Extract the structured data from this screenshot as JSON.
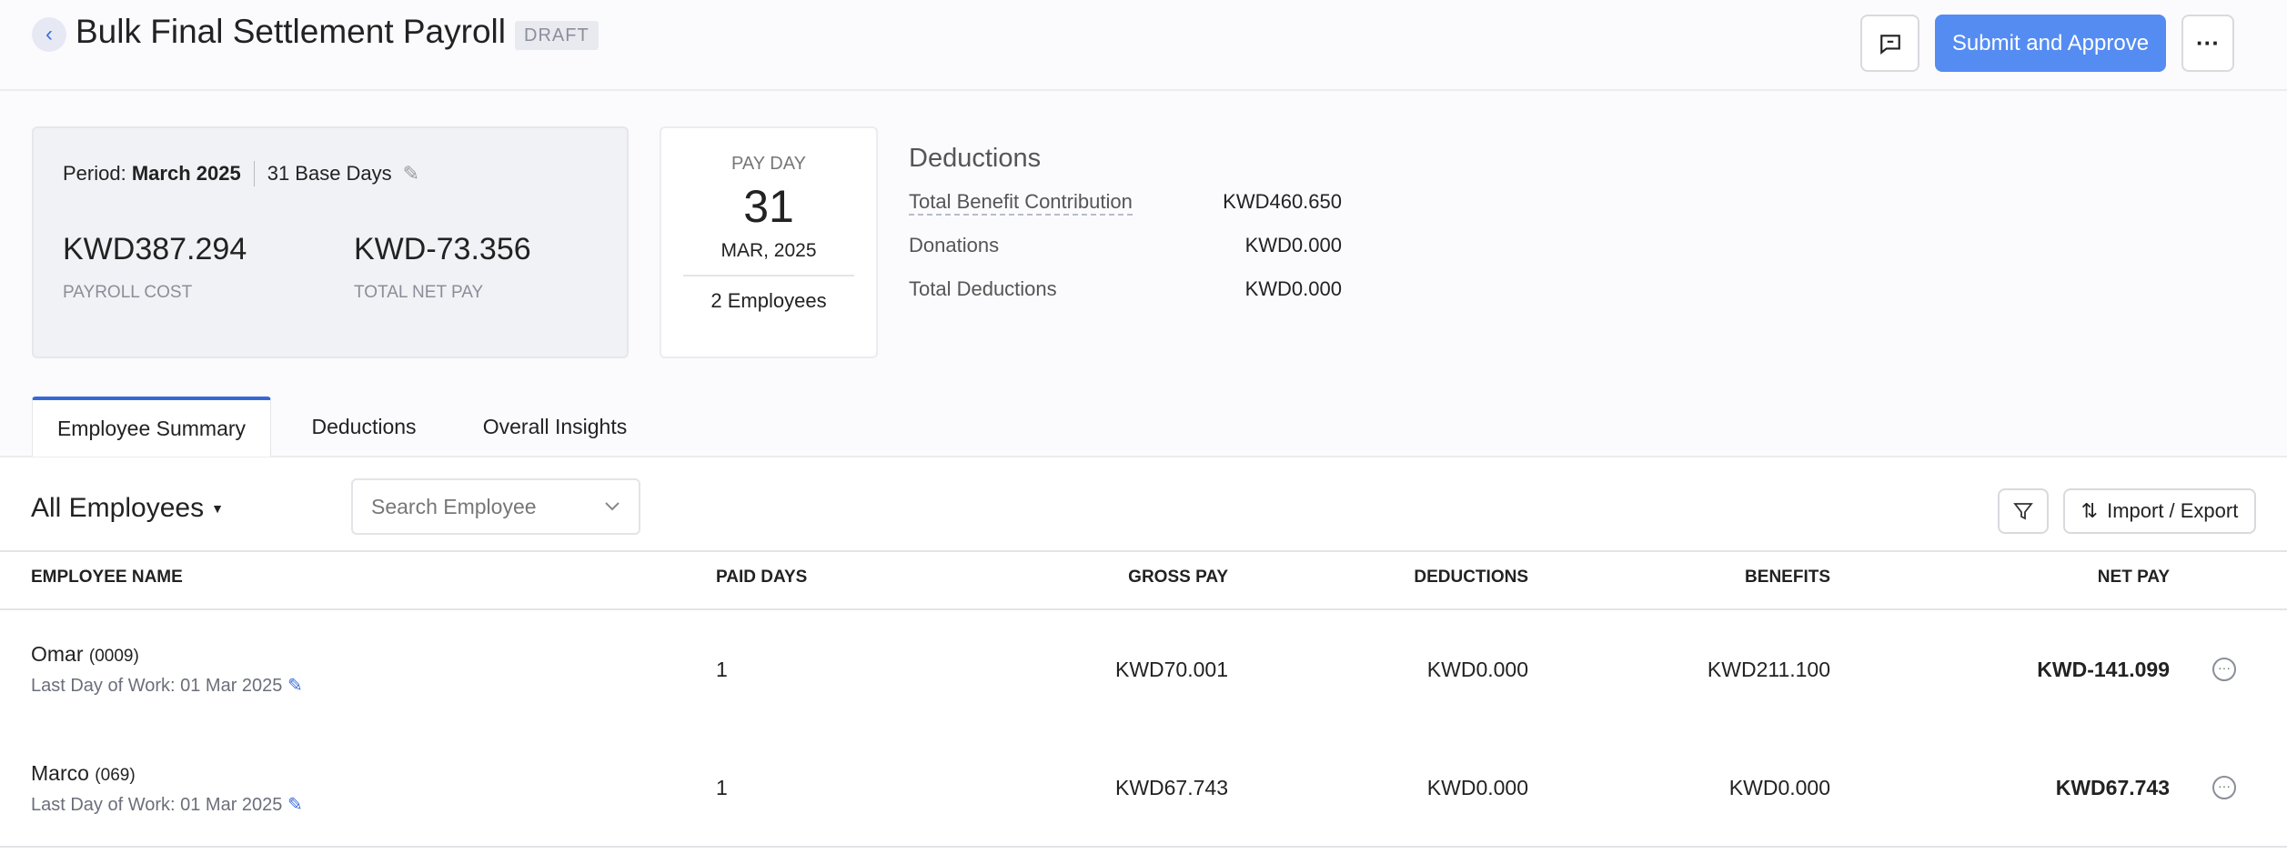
{
  "header": {
    "title": "Bulk Final Settlement Payroll",
    "status": "DRAFT",
    "submit_label": "Submit and Approve",
    "colors": {
      "primary": "#558cf2"
    }
  },
  "summary": {
    "period_label": "Period:",
    "period": "March 2025",
    "base_days": "31 Base Days",
    "payroll_cost": "KWD387.294",
    "payroll_cost_label": "PAYROLL COST",
    "net_pay": "KWD-73.356",
    "net_pay_label": "TOTAL NET PAY"
  },
  "payday": {
    "label": "PAY DAY",
    "day": "31",
    "month_year": "MAR, 2025",
    "employees": "2 Employees"
  },
  "deductions": {
    "title": "Deductions",
    "rows": [
      {
        "label": "Total Benefit Contribution",
        "value": "KWD460.650"
      },
      {
        "label": "Donations",
        "value": "KWD0.000"
      },
      {
        "label": "Total Deductions",
        "value": "KWD0.000"
      }
    ]
  },
  "tabs": [
    {
      "label": "Employee Summary",
      "active": true
    },
    {
      "label": "Deductions"
    },
    {
      "label": "Overall Insights"
    }
  ],
  "toolbar": {
    "filter_label": "All Employees",
    "search_placeholder": "Search Employee",
    "import_export": "Import / Export"
  },
  "table": {
    "columns": [
      "EMPLOYEE NAME",
      "PAID DAYS",
      "GROSS PAY",
      "DEDUCTIONS",
      "BENEFITS",
      "NET PAY"
    ],
    "rows": [
      {
        "name": "Omar",
        "id": "(0009)",
        "last_day": "Last Day of Work: 01 Mar 2025",
        "paid_days": "1",
        "gross": "KWD70.001",
        "deductions": "KWD0.000",
        "benefits": "KWD211.100",
        "net": "KWD-141.099"
      },
      {
        "name": "Marco",
        "id": "(069)",
        "last_day": "Last Day of Work: 01 Mar 2025",
        "paid_days": "1",
        "gross": "KWD67.743",
        "deductions": "KWD0.000",
        "benefits": "KWD0.000",
        "net": "KWD67.743"
      }
    ]
  }
}
